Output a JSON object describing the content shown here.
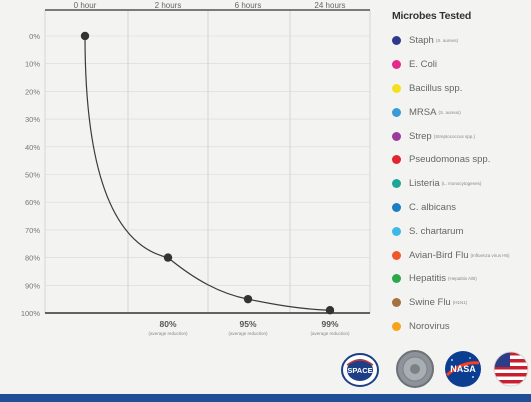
{
  "chart_data": {
    "type": "line",
    "x": [
      "0 hour",
      "2 hours",
      "6 hours",
      "24 hours"
    ],
    "y_axis": {
      "ticks": [
        "0%",
        "10%",
        "20%",
        "30%",
        "40%",
        "50%",
        "60%",
        "70%",
        "80%",
        "90%",
        "100%"
      ],
      "range": [
        0,
        100
      ],
      "inverted": true
    },
    "series": [
      {
        "values": [
          0,
          80,
          95,
          99
        ]
      }
    ],
    "annotations": [
      {
        "value": "80%",
        "note": "(average reduction)"
      },
      {
        "value": "95%",
        "note": "(average reduction)"
      },
      {
        "value": "99%",
        "note": "(average reduction)"
      }
    ],
    "grid": true,
    "line_color": "#3a3a3a",
    "point_color": "#333333"
  },
  "legend": {
    "title": "Microbes Tested",
    "placement": "right",
    "items": [
      {
        "label": "Staph",
        "note": "(S. aureus)",
        "color": "#2d3a8c"
      },
      {
        "label": "E. Coli",
        "note": "",
        "color": "#e62a8b"
      },
      {
        "label": "Bacillus spp.",
        "note": "",
        "color": "#f4e11c"
      },
      {
        "label": "MRSA",
        "note": "(S. aureus)",
        "color": "#3b9ad8"
      },
      {
        "label": "Strep",
        "note": "(Streptococcus spp.)",
        "color": "#9b3b9f"
      },
      {
        "label": "Pseudomonas spp.",
        "note": "",
        "color": "#e0262c"
      },
      {
        "label": "Listeria",
        "note": "(L. monocytogenes)",
        "color": "#1ea59a"
      },
      {
        "label": "C. albicans",
        "note": "",
        "color": "#1b7ec2"
      },
      {
        "label": "S. chartarum",
        "note": "",
        "color": "#3fb8e8"
      },
      {
        "label": "Avian-Bird Flu",
        "note": "(Influenza virus H5)",
        "color": "#f2572b"
      },
      {
        "label": "Hepatitis",
        "note": "(Hepatitis A/B)",
        "color": "#2aa84a"
      },
      {
        "label": "Swine Flu",
        "note": "(H1N1)",
        "color": "#a3733f"
      },
      {
        "label": "Norovirus",
        "note": "",
        "color": "#f7a21b"
      }
    ]
  },
  "badges": {
    "space_label": "SPACE",
    "nasa_label": "NASA"
  }
}
